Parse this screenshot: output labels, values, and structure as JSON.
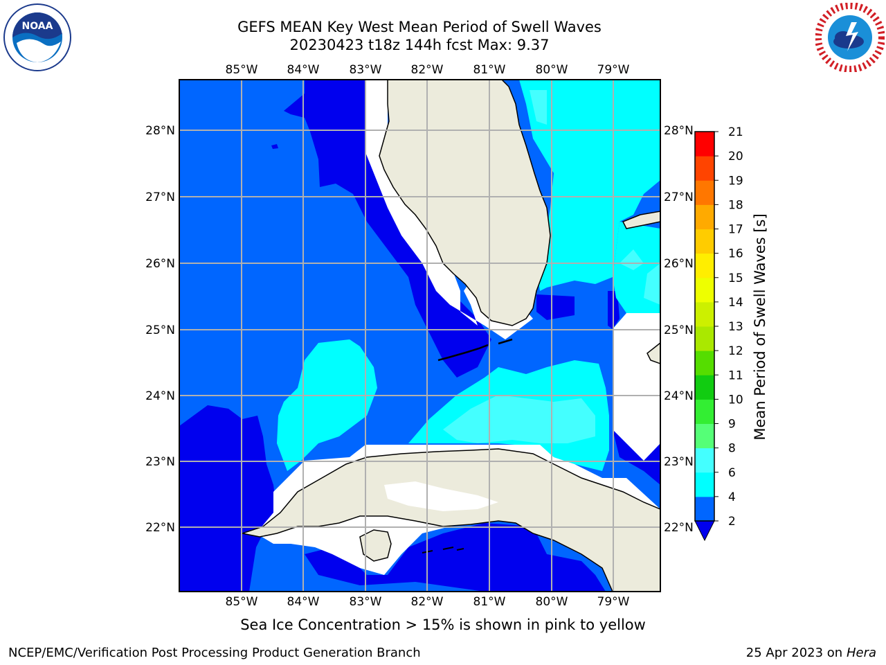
{
  "title_line1": "GEFS MEAN Key West Mean Period of Swell Waves",
  "title_line2": "20230423 t18z 144h fcst   Max: 9.37",
  "logos": {
    "left": "noaa-logo",
    "right": "nws-logo"
  },
  "map": {
    "lon_labels": [
      "85°W",
      "84°W",
      "83°W",
      "82°W",
      "81°W",
      "80°W",
      "79°W"
    ],
    "lat_labels": [
      "28°N",
      "27°N",
      "26°N",
      "25°N",
      "24°N",
      "23°N",
      "22°N"
    ],
    "land_color": "#ecebdc",
    "grid_color": "#b0b0b0"
  },
  "colorbar": {
    "label": "Mean Period of Swell Waves [s]",
    "ticks": [
      "2",
      "4",
      "6",
      "8",
      "9",
      "10",
      "11",
      "12",
      "13",
      "14",
      "15",
      "16",
      "17",
      "18",
      "19",
      "20",
      "21"
    ],
    "colors": [
      "#0066ff",
      "#00ffff",
      "#44ffff",
      "#99ffff",
      "#55ff77",
      "#33ee33",
      "#11cc11",
      "#55dd00",
      "#aae800",
      "#ccf000",
      "#eeff00",
      "#ffee00",
      "#ffcc00",
      "#ffaa00",
      "#ff7700",
      "#ff4400",
      "#ff0000"
    ],
    "extend_color": "#0000ee"
  },
  "ice_note": "Sea Ice Concentration > 15% is shown in pink to yellow",
  "footer": {
    "left": "NCEP/EMC/Verification Post Processing Product Generation Branch",
    "right_date": "25 Apr 2023 on ",
    "right_host": "Hera"
  }
}
